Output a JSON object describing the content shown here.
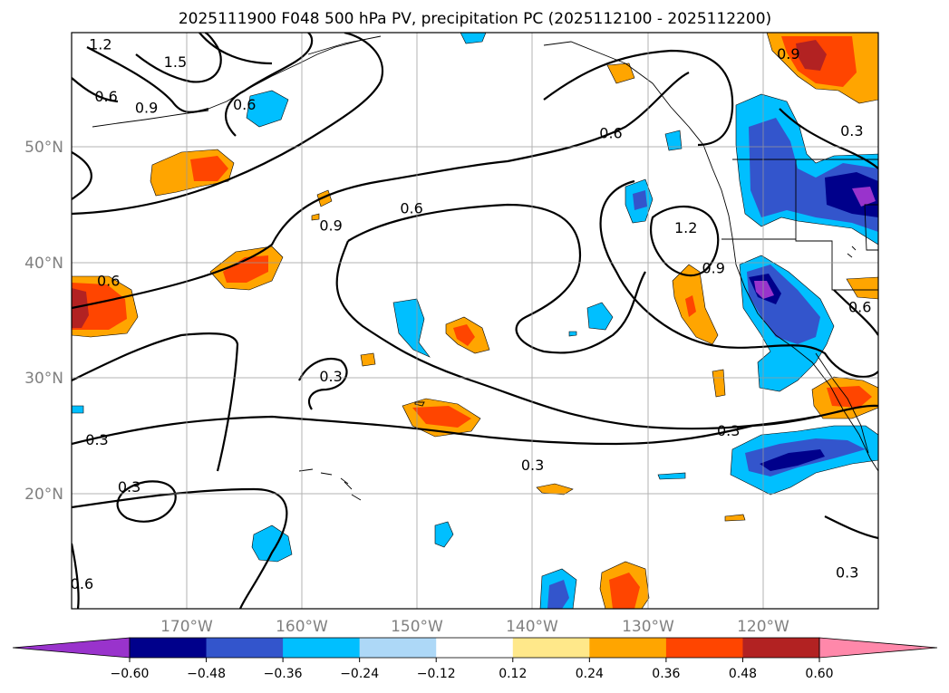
{
  "chart_data": {
    "type": "contour-map",
    "title": "2025111900 F048 500 hPa PV, precipitation PC (2025112100 - 2025112200)",
    "map_extent": {
      "lon": [
        -180,
        -110
      ],
      "lat": [
        10,
        60
      ]
    },
    "lat_ticks": [
      {
        "value": 20,
        "label": "20°N"
      },
      {
        "value": 30,
        "label": "30°N"
      },
      {
        "value": 40,
        "label": "40°N"
      },
      {
        "value": 50,
        "label": "50°N"
      }
    ],
    "lon_ticks": [
      {
        "value": -170,
        "label": "170°W"
      },
      {
        "value": -160,
        "label": "160°W"
      },
      {
        "value": -150,
        "label": "150°W"
      },
      {
        "value": -140,
        "label": "140°W"
      },
      {
        "value": -130,
        "label": "130°W"
      },
      {
        "value": -120,
        "label": "120°W"
      }
    ],
    "grid": true,
    "colorbar": {
      "orientation": "horizontal",
      "extend": "both",
      "boundaries": [
        -0.6,
        -0.48,
        -0.36,
        -0.24,
        -0.12,
        0.12,
        0.24,
        0.36,
        0.48,
        0.6
      ],
      "tick_labels": [
        "−0.60",
        "−0.48",
        "−0.36",
        "−0.24",
        "−0.12",
        "0.12",
        "0.24",
        "0.36",
        "0.48",
        "0.60"
      ],
      "colors": [
        "#9933cc",
        "#00008b",
        "#3355cc",
        "#00bfff",
        "#add8f7",
        "#ffffff",
        "#ffe88a",
        "#ffa500",
        "#ff4500",
        "#b22222",
        "#ff88aa"
      ]
    },
    "pv_contour_labels": [
      {
        "text": "1.2",
        "lon": -177.5,
        "lat": 59
      },
      {
        "text": "1.5",
        "lon": -171,
        "lat": 57.5
      },
      {
        "text": "0.6",
        "lon": -177,
        "lat": 54.5
      },
      {
        "text": "0.9",
        "lon": -173.5,
        "lat": 53.5
      },
      {
        "text": "0.6",
        "lon": -165,
        "lat": 53.8
      },
      {
        "text": "0.6",
        "lon": -150.5,
        "lat": 44.8
      },
      {
        "text": "0.9",
        "lon": -157.5,
        "lat": 43.3
      },
      {
        "text": "0.6",
        "lon": -176.8,
        "lat": 38.5
      },
      {
        "text": "0.3",
        "lon": -157.5,
        "lat": 30.2
      },
      {
        "text": "0.3",
        "lon": -177.8,
        "lat": 24.7
      },
      {
        "text": "0.3",
        "lon": -175,
        "lat": 20.6
      },
      {
        "text": "0.3",
        "lon": -140,
        "lat": 22.5
      },
      {
        "text": "0.3",
        "lon": -123,
        "lat": 25.5
      },
      {
        "text": "0.3",
        "lon": -112.3,
        "lat": 51.5
      },
      {
        "text": "0.6",
        "lon": -111.6,
        "lat": 36.2
      },
      {
        "text": "0.3",
        "lon": -112.7,
        "lat": 13.2
      },
      {
        "text": "1.2",
        "lon": -126.7,
        "lat": 43.1
      },
      {
        "text": "0.9",
        "lon": -124.3,
        "lat": 39.6
      },
      {
        "text": "0.6",
        "lon": -179.1,
        "lat": 12.2
      },
      {
        "text": "0.9",
        "lon": -117.8,
        "lat": 58.2
      },
      {
        "text": "0.6",
        "lon": -133.2,
        "lat": 51.3
      }
    ]
  },
  "icons": {
    "colorbar_left_arrow": "triangle-left",
    "colorbar_right_arrow": "triangle-right"
  }
}
